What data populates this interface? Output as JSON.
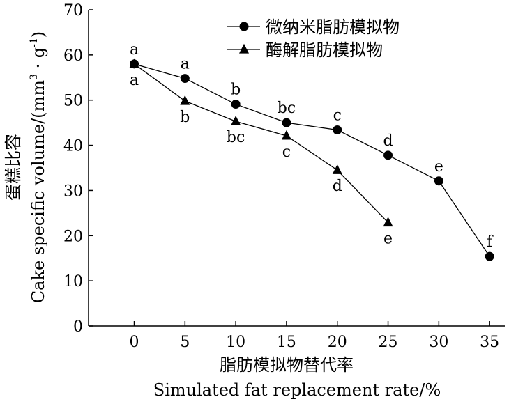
{
  "chart_data": {
    "type": "line",
    "xlabel_cn": "脂肪模拟物替代率",
    "xlabel_en": "Simulated fat replacement rate/%",
    "ylabel_cn": "蛋糕比容",
    "ylabel_en": "Cake specific volume/(mm",
    "ylabel_sup1": "3",
    "ylabel_mid": " · g",
    "ylabel_sup2": "-1",
    "ylabel_end": ")",
    "xlim": [
      -4.5,
      36.5
    ],
    "ylim": [
      0,
      70
    ],
    "x_ticks": [
      0,
      5,
      10,
      15,
      20,
      25,
      30,
      35
    ],
    "y_ticks": [
      0,
      10,
      20,
      30,
      40,
      50,
      60,
      70
    ],
    "legend_position": "top-right",
    "series": [
      {
        "name": "微纳米脂肪模拟物",
        "marker": "circle",
        "x": [
          0,
          5,
          10,
          15,
          20,
          25,
          30,
          35
        ],
        "y": [
          58.0,
          54.8,
          49.1,
          45.0,
          43.4,
          37.8,
          32.1,
          15.4
        ],
        "labels": [
          "a",
          "a",
          "b",
          "bc",
          "c",
          "d",
          "e",
          "f"
        ]
      },
      {
        "name": "酶解脂肪模拟物",
        "marker": "triangle",
        "x": [
          0,
          5,
          10,
          15,
          20,
          25
        ],
        "y": [
          58.0,
          49.8,
          45.3,
          42.1,
          34.5,
          22.9
        ],
        "labels": [
          "a",
          "b",
          "bc",
          "c",
          "d",
          "e"
        ]
      }
    ]
  }
}
